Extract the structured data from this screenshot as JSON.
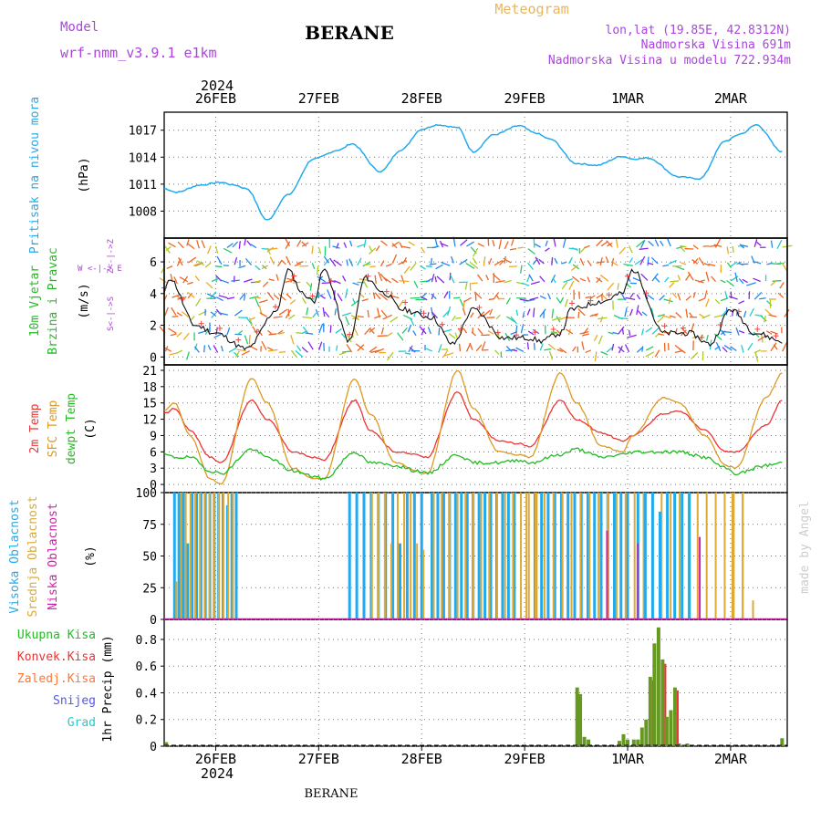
{
  "header": {
    "model_label": "Model",
    "model_name": "wrf-nmm_v3.9.1 e1km",
    "station": "BERANE",
    "product": "Meteogram",
    "coords": "lon,lat (19.85E, 42.8312N)",
    "altitude": "Nadmorska Visina 691m",
    "model_altitude": "Nadmorska Visina u modelu 722.934m",
    "footer_station": "BERANE",
    "watermark": "made by Angel"
  },
  "colors": {
    "pressure": "#22aaee",
    "temp2m": "#ee3333",
    "sfc": "#dd9922",
    "dewpt": "#22bb22",
    "high_cloud": "#22aaee",
    "mid_cloud": "#ddaa33",
    "low_cloud": "#cc22aa",
    "precip": "#669922",
    "conv": "#ee3333",
    "label_purple": "#aa44dd"
  },
  "chart_data": [
    {
      "type": "line",
      "name": "pressure",
      "ylabel": "Pritisak na nivou mora",
      "unit": "(hPa)",
      "ylim": [
        1005,
        1019
      ],
      "yticks": [
        1008,
        1011,
        1014,
        1017
      ],
      "x_days": [
        0,
        0.12,
        0.35,
        0.55,
        0.68,
        0.8,
        1.0,
        1.2,
        1.45,
        1.7,
        1.82,
        2.1,
        2.3,
        2.5,
        2.65,
        2.85,
        3.0,
        3.2,
        3.45,
        3.6,
        3.75,
        4.0,
        4.2,
        4.45,
        4.55,
        4.7,
        5.0,
        5.2,
        5.45,
        5.6,
        5.75,
        6.0
      ],
      "y_hpa": [
        1010.5,
        1010.1,
        1010.9,
        1011.2,
        1010.9,
        1010.5,
        1007.0,
        1009.8,
        1013.8,
        1014.8,
        1015.5,
        1012.4,
        1014.8,
        1017.1,
        1017.6,
        1017.3,
        1014.6,
        1016.5,
        1017.5,
        1016.7,
        1016.0,
        1013.3,
        1013.1,
        1014.1,
        1013.8,
        1013.9,
        1011.8,
        1011.6,
        1015.8,
        1016.6,
        1017.6,
        1014.6
      ]
    },
    {
      "type": "line",
      "name": "wind",
      "ylabel": "10m Vjetar Brzina i Pravac",
      "unit": "(m/s)",
      "compass": [
        "N",
        "W",
        "E",
        "S"
      ],
      "ylim": [
        -0.5,
        7.5
      ],
      "yticks": [
        0,
        2,
        4,
        6
      ],
      "x_days": [
        0,
        0.05,
        0.3,
        0.5,
        0.8,
        1.1,
        1.2,
        1.35,
        1.45,
        1.55,
        1.8,
        1.95,
        2.15,
        2.3,
        2.6,
        2.8,
        3.0,
        3.3,
        3.55,
        3.65,
        3.85,
        3.95,
        4.25,
        4.45,
        4.55,
        4.85,
        5.1,
        5.3,
        5.5,
        5.75,
        6.0
      ],
      "y_ms": [
        4.0,
        5.0,
        2.0,
        1.5,
        0.5,
        3.0,
        5.5,
        4.0,
        3.5,
        5.5,
        1.0,
        5.0,
        4.0,
        3.0,
        2.5,
        0.8,
        3.0,
        1.2,
        1.2,
        1.0,
        1.5,
        3.0,
        3.5,
        4.0,
        5.5,
        1.5,
        1.5,
        0.8,
        3.0,
        1.5,
        1.0
      ]
    },
    {
      "type": "line",
      "name": "temperature",
      "ylabel": "2m Temp / SFC Temp / dewpt Temp",
      "series_labels": [
        "2m Temp",
        "SFC Temp",
        "dewpt Temp"
      ],
      "unit": "(C)",
      "ylim": [
        -1.5,
        22
      ],
      "yticks": [
        0,
        3,
        6,
        9,
        12,
        15,
        18,
        21
      ],
      "x_days": [
        0,
        0.1,
        0.25,
        0.45,
        0.55,
        0.85,
        1.0,
        1.25,
        1.45,
        1.55,
        1.85,
        2.0,
        2.25,
        2.45,
        2.55,
        2.85,
        3.0,
        3.25,
        3.45,
        3.55,
        3.85,
        4.0,
        4.25,
        4.45,
        4.55,
        4.85,
        5.0,
        5.25,
        5.45,
        5.55,
        5.85,
        6.0
      ],
      "series": [
        {
          "name": "2m Temp",
          "values": [
            13,
            14,
            10,
            5,
            4,
            15.5,
            12,
            6,
            5,
            4.5,
            15.5,
            10,
            6,
            5.5,
            5,
            17,
            12,
            8,
            7.5,
            7,
            15.5,
            12,
            9.5,
            8,
            9,
            13,
            13.5,
            10,
            6,
            6,
            11,
            15.5
          ]
        },
        {
          "name": "SFC Temp",
          "values": [
            13.5,
            15,
            9,
            1,
            0,
            19.5,
            15,
            3,
            1,
            1,
            19.5,
            13,
            4,
            2.5,
            2,
            21,
            14,
            6,
            5.5,
            5,
            20.5,
            15,
            7,
            6,
            9,
            16,
            15,
            9,
            3.5,
            3,
            16,
            20.5
          ]
        },
        {
          "name": "dewpt Temp",
          "values": [
            5.5,
            5,
            5,
            2.5,
            2,
            6.5,
            5,
            2.5,
            1.5,
            1,
            6,
            4,
            3.5,
            2.5,
            2,
            5.5,
            4,
            4,
            4.5,
            4,
            5.5,
            6.5,
            5,
            5.5,
            6,
            6,
            6,
            5,
            3,
            2,
            3.5,
            4
          ]
        }
      ]
    },
    {
      "type": "bar",
      "name": "clouds",
      "ylabel": "Visoka Oblacnost / Srednja Oblacnost / Niska Oblacnost",
      "series_labels": [
        "Visoka Oblacnost",
        "Srednja Oblacnost",
        "Niska Oblacnost"
      ],
      "unit": "(%)",
      "ylim": [
        0,
        100
      ],
      "yticks": [
        0,
        25,
        50,
        75,
        100
      ],
      "segments": [
        {
          "from": 0.1,
          "to": 0.7,
          "series": "high",
          "values": [
            100,
            100,
            100,
            60,
            100,
            100,
            100,
            100,
            100,
            100,
            100,
            100,
            90,
            100,
            100
          ]
        },
        {
          "from": 0.1,
          "to": 0.65,
          "series": "mid",
          "values": [
            30,
            100,
            100,
            100,
            100,
            100,
            100,
            100,
            100,
            100,
            100,
            100,
            100
          ]
        },
        {
          "from": 1.8,
          "to": 2.5,
          "series": "high",
          "values": [
            100,
            100,
            100,
            100,
            100,
            100,
            100,
            60,
            100,
            100,
            100
          ]
        },
        {
          "from": 2.0,
          "to": 2.5,
          "series": "mid",
          "values": [
            100,
            100,
            100,
            60,
            100,
            100,
            100,
            60,
            55
          ]
        },
        {
          "from": 2.6,
          "to": 3.4,
          "series": "high",
          "values": [
            100,
            100,
            100,
            100,
            100,
            100,
            100,
            100,
            100,
            100,
            100,
            100,
            100,
            100,
            100
          ]
        },
        {
          "from": 2.6,
          "to": 3.6,
          "series": "mid",
          "values": [
            100,
            100,
            100,
            100,
            100,
            100,
            100,
            100,
            100,
            100,
            100,
            100,
            100,
            100
          ]
        },
        {
          "from": 3.6,
          "to": 4.5,
          "series": "high",
          "values": [
            100,
            100,
            100,
            100,
            100,
            100,
            100,
            100,
            100,
            100,
            100,
            100,
            100,
            100,
            100
          ]
        },
        {
          "from": 3.5,
          "to": 5.6,
          "series": "mid",
          "values": [
            100,
            100,
            100,
            100,
            100,
            100,
            100,
            100,
            100,
            100,
            100,
            100,
            100,
            100,
            100,
            100,
            100,
            100,
            100,
            100,
            100,
            100,
            100,
            100,
            100
          ]
        },
        {
          "from": 4.6,
          "to": 5.1,
          "series": "high",
          "values": [
            100,
            100,
            100,
            85,
            100,
            100,
            100,
            100
          ]
        },
        {
          "from": 5.5,
          "to": 5.7,
          "series": "mid",
          "values": [
            100,
            100,
            15
          ]
        },
        {
          "from": 4.3,
          "to": 4.35,
          "series": "low",
          "values": [
            70
          ]
        },
        {
          "from": 4.6,
          "to": 4.7,
          "series": "low",
          "values": [
            60
          ]
        },
        {
          "from": 5.2,
          "to": 5.3,
          "series": "low",
          "values": [
            65
          ]
        }
      ]
    },
    {
      "type": "bar",
      "name": "precip",
      "ylabel": "1hr Precip (mm)",
      "legend": [
        "Ukupna Kisa",
        "Konvek.Kisa",
        "Zaledj.Kisa",
        "Snijeg",
        "Grad"
      ],
      "legend_colors": [
        "#22bb22",
        "#ee3333",
        "#ff7733",
        "#5555ee",
        "#22cccc"
      ],
      "ylim": [
        0,
        0.95
      ],
      "yticks": [
        0,
        0.2,
        0.4,
        0.6,
        0.8
      ],
      "x_days": [
        0.02,
        4.01,
        4.04,
        4.08,
        4.12,
        4.42,
        4.46,
        4.5,
        4.56,
        4.6,
        4.64,
        4.68,
        4.72,
        4.76,
        4.8,
        4.84,
        4.88,
        4.92,
        4.96,
        5.0,
        5.04,
        5.08,
        6.0
      ],
      "values": [
        0.03,
        0.44,
        0.39,
        0.07,
        0.05,
        0.04,
        0.09,
        0.05,
        0.05,
        0.05,
        0.14,
        0.2,
        0.52,
        0.77,
        0.89,
        0.65,
        0.22,
        0.27,
        0.44,
        0.02,
        0.01,
        0.02,
        0.06
      ]
    }
  ],
  "x_axis": {
    "top_year": "2024",
    "bottom_year": "2024",
    "ticks": [
      "26FEB",
      "27FEB",
      "28FEB",
      "29FEB",
      "1MAR",
      "2MAR"
    ],
    "tick_days": [
      0.5,
      1.5,
      2.5,
      3.5,
      4.5,
      5.5
    ]
  }
}
